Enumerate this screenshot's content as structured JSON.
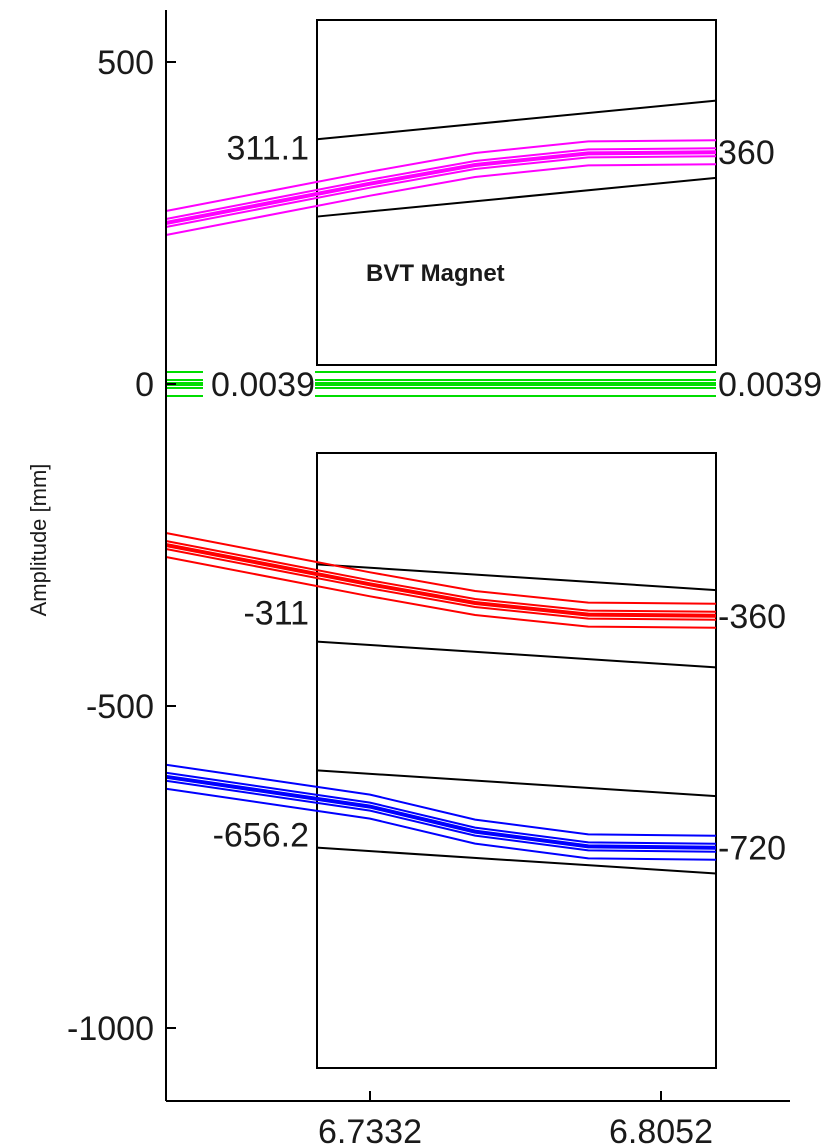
{
  "chart_data": {
    "type": "line",
    "ylabel": "Amplitude [mm]",
    "xlabel": "",
    "ylim": [
      -1000,
      560
    ],
    "y_ticks": [
      {
        "value": 500,
        "label": "500"
      },
      {
        "value": 0,
        "label": "0"
      },
      {
        "value": -500,
        "label": "-500"
      },
      {
        "value": -1000,
        "label": "-1000"
      }
    ],
    "x_ticks": [
      {
        "value": 6.7332,
        "label": "6.7332"
      },
      {
        "value": 6.8052,
        "label": "6.8052"
      }
    ],
    "magnet": {
      "label": "BVT Magnet",
      "s_start": 6.7332,
      "s_end": 6.8052
    },
    "series": [
      {
        "color": "#ff00ff",
        "entry_label": "311.1",
        "exit_label": "360",
        "points": [
          [
            6.6956,
            250
          ],
          [
            6.7332,
            311.1
          ],
          [
            6.7592,
            340
          ],
          [
            6.7872,
            358
          ],
          [
            6.8322,
            360
          ]
        ],
        "band": 12
      },
      {
        "color": "#00dd00",
        "entry_label": "0.0039",
        "exit_label": "0.0039",
        "points": [
          [
            6.6956,
            0.0039
          ],
          [
            6.8322,
            0.0039
          ]
        ],
        "band": 12
      },
      {
        "color": "#ff0000",
        "entry_label": "-311",
        "exit_label": "-360",
        "points": [
          [
            6.6956,
            -250
          ],
          [
            6.7332,
            -311
          ],
          [
            6.7592,
            -340
          ],
          [
            6.7872,
            -358
          ],
          [
            6.8322,
            -360
          ]
        ],
        "band": 12
      },
      {
        "color": "#0000ff",
        "entry_label": "-656.2",
        "exit_label": "-720",
        "points": [
          [
            6.6956,
            -610
          ],
          [
            6.7332,
            -656.2
          ],
          [
            6.7592,
            -695
          ],
          [
            6.7872,
            -718
          ],
          [
            6.8322,
            -720
          ]
        ],
        "band": 12
      }
    ],
    "apertures": [
      {
        "upper_entry": 380,
        "upper_exit": 440,
        "lower_entry": 260,
        "lower_exit": 320
      },
      {
        "upper_entry": -280,
        "upper_exit": -320,
        "lower_entry": -400,
        "lower_exit": -440
      },
      {
        "upper_entry": -600,
        "upper_exit": -640,
        "lower_entry": -720,
        "lower_exit": -760
      }
    ]
  }
}
